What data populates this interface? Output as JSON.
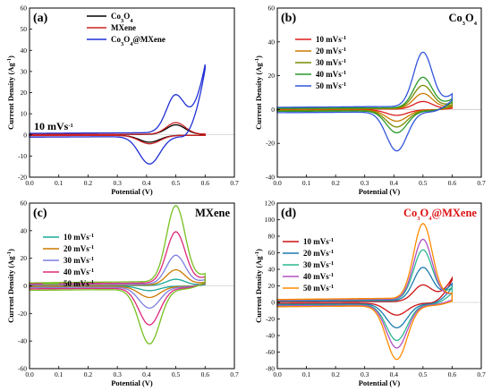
{
  "chart_data": [
    {
      "type": "line",
      "panel": "(a)",
      "title": "",
      "annotation": "10 mVs⁻¹",
      "xlabel": "Potential (V)",
      "ylabel": "Current Density (Ag⁻¹)",
      "xlim": [
        0.0,
        0.7
      ],
      "ylim": [
        -20,
        60
      ],
      "xticks": [
        0.0,
        0.1,
        0.2,
        0.3,
        0.4,
        0.5,
        0.6,
        0.7
      ],
      "yticks": [
        -20,
        -10,
        0,
        10,
        20,
        30,
        40,
        50,
        60
      ],
      "legend_position": "top-center",
      "series": [
        {
          "name": "Co₃O₄",
          "color": "#000000",
          "scale": 4.5,
          "tail": 0
        },
        {
          "name": "MXene",
          "color": "#cc2222",
          "scale": 5.5,
          "tail": 0
        },
        {
          "name": "Co₃O₄@MXene",
          "color": "#1f2fd6",
          "scale": 18,
          "tail": 32
        }
      ]
    },
    {
      "type": "line",
      "panel": "(b)",
      "title": "Co₃O₄",
      "xlabel": "Potential (V)",
      "ylabel": "Current Density (Ag⁻¹)",
      "xlim": [
        0.0,
        0.7
      ],
      "ylim": [
        -40,
        60
      ],
      "xticks": [
        0.0,
        0.1,
        0.2,
        0.3,
        0.4,
        0.5,
        0.6,
        0.7
      ],
      "yticks": [
        -40,
        -20,
        0,
        20,
        40,
        60
      ],
      "legend_position": "left",
      "series": [
        {
          "name": "10 mVs⁻¹",
          "color": "#dd1c1c",
          "scale": 4.5,
          "tail": 1
        },
        {
          "name": "20 mVs⁻¹",
          "color": "#cc7a00",
          "scale": 9,
          "tail": 2
        },
        {
          "name": "30 mVs⁻¹",
          "color": "#7a8a00",
          "scale": 13.5,
          "tail": 3
        },
        {
          "name": "40 mVs⁻¹",
          "color": "#2a9a2a",
          "scale": 18,
          "tail": 5
        },
        {
          "name": "50 mVs⁻¹",
          "color": "#3355dd",
          "scale": 32,
          "tail": 7
        }
      ]
    },
    {
      "type": "line",
      "panel": "(c)",
      "title": "MXene",
      "xlabel": "Potential (V)",
      "ylabel": "Current Density (Ag⁻¹)",
      "xlim": [
        0.0,
        0.7
      ],
      "ylim": [
        -60,
        60
      ],
      "xticks": [
        0.0,
        0.1,
        0.2,
        0.3,
        0.4,
        0.5,
        0.6,
        0.7
      ],
      "yticks": [
        -60,
        -40,
        -20,
        0,
        20,
        40,
        60
      ],
      "legend_position": "left",
      "series": [
        {
          "name": "10 mVs⁻¹",
          "color": "#1aa89a",
          "scale": 4.5,
          "tail": 1
        },
        {
          "name": "20 mVs⁻¹",
          "color": "#cc7a00",
          "scale": 11,
          "tail": 2
        },
        {
          "name": "30 mVs⁻¹",
          "color": "#7f7fe0",
          "scale": 21,
          "tail": 3
        },
        {
          "name": "40 mVs⁻¹",
          "color": "#dd2a7a",
          "scale": 37,
          "tail": 4
        },
        {
          "name": "50 mVs⁻¹",
          "color": "#77c020",
          "scale": 55,
          "tail": 5
        }
      ]
    },
    {
      "type": "line",
      "panel": "(d)",
      "title": "Co₃O₄@MXene",
      "xlabel": "Potential (V)",
      "ylabel": "Current Density (Ag⁻¹)",
      "xlim": [
        0.0,
        0.7
      ],
      "ylim": [
        -80,
        120
      ],
      "xticks": [
        0.0,
        0.1,
        0.2,
        0.3,
        0.4,
        0.5,
        0.6,
        0.7
      ],
      "yticks": [
        -80,
        -60,
        -40,
        -20,
        0,
        20,
        40,
        60,
        80,
        100,
        120
      ],
      "legend_position": "left",
      "series": [
        {
          "name": "10 mVs⁻¹",
          "color": "#cc1111",
          "scale": 20,
          "tail": 28
        },
        {
          "name": "20 mVs⁻¹",
          "color": "#1a7ab0",
          "scale": 40,
          "tail": 20
        },
        {
          "name": "30 mVs⁻¹",
          "color": "#2ab890",
          "scale": 60,
          "tail": 14
        },
        {
          "name": "40 mVs⁻¹",
          "color": "#b050c0",
          "scale": 72,
          "tail": 6
        },
        {
          "name": "50 mVs⁻¹",
          "color": "#ff8c00",
          "scale": 90,
          "tail": 5
        }
      ]
    }
  ]
}
